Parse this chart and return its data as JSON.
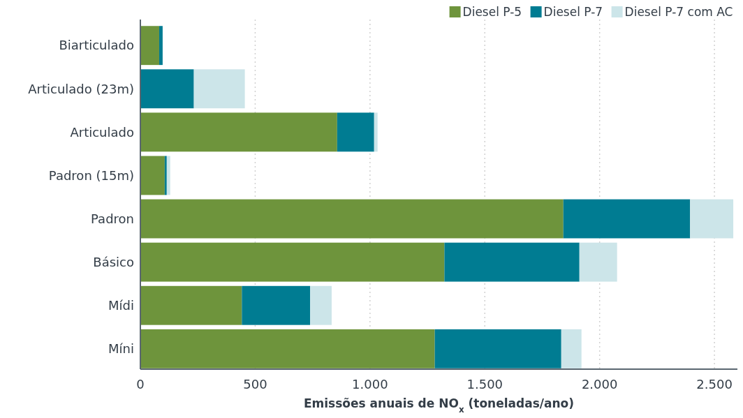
{
  "chart_data": {
    "type": "bar",
    "orientation": "horizontal",
    "stacked": true,
    "categories": [
      "Biarticulado",
      "Articulado (23m)",
      "Articulado",
      "Padron (15m)",
      "Padron",
      "Básico",
      "Mídi",
      "Míni"
    ],
    "series": [
      {
        "name": "Diesel P-5",
        "color": "#6e943c",
        "values": [
          82,
          0,
          857,
          106,
          1842,
          1324,
          442,
          1282
        ]
      },
      {
        "name": "Diesel P-7",
        "color": "#007c92",
        "values": [
          15,
          233,
          161,
          9,
          552,
          588,
          297,
          551
        ]
      },
      {
        "name": "Diesel P-7 com AC",
        "color": "#cce5e9",
        "values": [
          0,
          222,
          15,
          15,
          188,
          164,
          94,
          88
        ]
      }
    ],
    "xlim": [
      0,
      2600
    ],
    "xticks": [
      {
        "value": 0,
        "label": "0"
      },
      {
        "value": 500,
        "label": "500"
      },
      {
        "value": 1000,
        "label": "1.000"
      },
      {
        "value": 1500,
        "label": "1.500"
      },
      {
        "value": 2000,
        "label": "2.000"
      },
      {
        "value": 2500,
        "label": "2.500"
      }
    ],
    "xlabel": "Emissões anuais de NO$_{x}$ (toneladas/ano)",
    "grid": "x",
    "legend": "top right"
  }
}
